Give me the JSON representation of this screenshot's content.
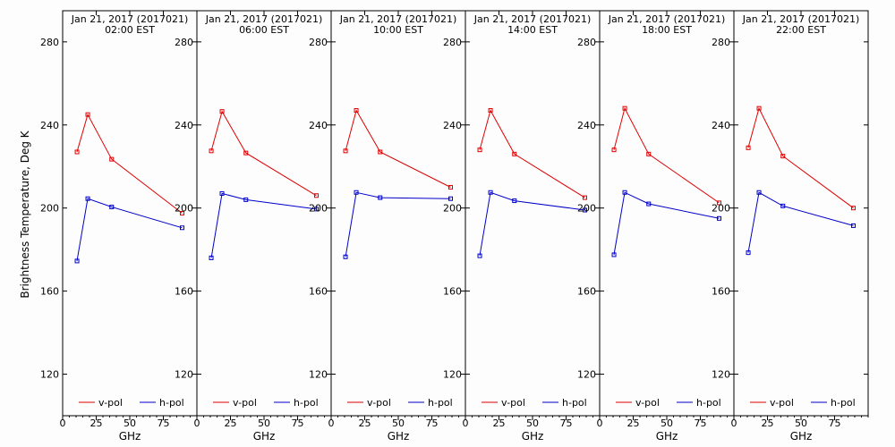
{
  "figure": {
    "ylabel": "Brightness Temperature, Deg K",
    "xlabel": "GHz",
    "colors": {
      "v": "#e00000",
      "h": "#0000c8"
    }
  },
  "chart_data": [
    {
      "type": "line",
      "title": "Jan 21, 2017 (2017021)",
      "subtitle": "02:00 EST",
      "xlabel": "GHz",
      "ylabel": "Brightness Temperature, Deg K",
      "xlim": [
        0,
        100
      ],
      "ylim": [
        100,
        295
      ],
      "xticks": [
        0,
        25,
        50,
        75
      ],
      "yticks": [
        120,
        160,
        200,
        240,
        280
      ],
      "legend_position": "bottom",
      "series": [
        {
          "name": "v-pol",
          "color": "#e00000",
          "x": [
            10.7,
            18.7,
            36.5,
            89.0
          ],
          "values": [
            227,
            245,
            223.5,
            197.5
          ]
        },
        {
          "name": "h-pol",
          "color": "#0000c8",
          "x": [
            10.7,
            18.7,
            36.5,
            89.0
          ],
          "values": [
            174.5,
            204.5,
            200.5,
            190.5
          ]
        }
      ]
    },
    {
      "type": "line",
      "title": "Jan 21, 2017 (2017021)",
      "subtitle": "06:00 EST",
      "xlabel": "GHz",
      "ylabel": "",
      "xlim": [
        0,
        100
      ],
      "ylim": [
        100,
        295
      ],
      "xticks": [
        0,
        25,
        50,
        75
      ],
      "yticks": [
        120,
        160,
        200,
        240,
        280
      ],
      "legend_position": "bottom",
      "series": [
        {
          "name": "v-pol",
          "color": "#e00000",
          "x": [
            10.7,
            18.7,
            36.5,
            89.0
          ],
          "values": [
            227.5,
            246.5,
            226.5,
            206
          ]
        },
        {
          "name": "h-pol",
          "color": "#0000c8",
          "x": [
            10.7,
            18.7,
            36.5,
            89.0
          ],
          "values": [
            176,
            207,
            204,
            199.5
          ]
        }
      ]
    },
    {
      "type": "line",
      "title": "Jan 21, 2017 (2017021)",
      "subtitle": "10:00 EST",
      "xlabel": "GHz",
      "ylabel": "",
      "xlim": [
        0,
        100
      ],
      "ylim": [
        100,
        295
      ],
      "xticks": [
        0,
        25,
        50,
        75
      ],
      "yticks": [
        120,
        160,
        200,
        240,
        280
      ],
      "legend_position": "bottom",
      "series": [
        {
          "name": "v-pol",
          "color": "#e00000",
          "x": [
            10.7,
            18.7,
            36.5,
            89.0
          ],
          "values": [
            227.5,
            247,
            227,
            210
          ]
        },
        {
          "name": "h-pol",
          "color": "#0000c8",
          "x": [
            10.7,
            18.7,
            36.5,
            89.0
          ],
          "values": [
            176.5,
            207.5,
            205,
            204.5
          ]
        }
      ]
    },
    {
      "type": "line",
      "title": "Jan 21, 2017 (2017021)",
      "subtitle": "14:00 EST",
      "xlabel": "GHz",
      "ylabel": "",
      "xlim": [
        0,
        100
      ],
      "ylim": [
        100,
        295
      ],
      "xticks": [
        0,
        25,
        50,
        75
      ],
      "yticks": [
        120,
        160,
        200,
        240,
        280
      ],
      "legend_position": "bottom",
      "series": [
        {
          "name": "v-pol",
          "color": "#e00000",
          "x": [
            10.7,
            18.7,
            36.5,
            89.0
          ],
          "values": [
            228,
            247,
            226,
            205
          ]
        },
        {
          "name": "h-pol",
          "color": "#0000c8",
          "x": [
            10.7,
            18.7,
            36.5,
            89.0
          ],
          "values": [
            177,
            207.5,
            203.5,
            199
          ]
        }
      ]
    },
    {
      "type": "line",
      "title": "Jan 21, 2017 (2017021)",
      "subtitle": "18:00 EST",
      "xlabel": "GHz",
      "ylabel": "",
      "xlim": [
        0,
        100
      ],
      "ylim": [
        100,
        295
      ],
      "xticks": [
        0,
        25,
        50,
        75
      ],
      "yticks": [
        120,
        160,
        200,
        240,
        280
      ],
      "legend_position": "bottom",
      "series": [
        {
          "name": "v-pol",
          "color": "#e00000",
          "x": [
            10.7,
            18.7,
            36.5,
            89.0
          ],
          "values": [
            228,
            248,
            226,
            202.5
          ]
        },
        {
          "name": "h-pol",
          "color": "#0000c8",
          "x": [
            10.7,
            18.7,
            36.5,
            89.0
          ],
          "values": [
            177.5,
            207.5,
            202,
            195
          ]
        }
      ]
    },
    {
      "type": "line",
      "title": "Jan 21, 2017 (2017021)",
      "subtitle": "22:00 EST",
      "xlabel": "GHz",
      "ylabel": "",
      "xlim": [
        0,
        100
      ],
      "ylim": [
        100,
        295
      ],
      "xticks": [
        0,
        25,
        50,
        75
      ],
      "yticks": [
        120,
        160,
        200,
        240,
        280
      ],
      "legend_position": "bottom",
      "series": [
        {
          "name": "v-pol",
          "color": "#e00000",
          "x": [
            10.7,
            18.7,
            36.5,
            89.0
          ],
          "values": [
            229,
            248,
            225,
            200
          ]
        },
        {
          "name": "h-pol",
          "color": "#0000c8",
          "x": [
            10.7,
            18.7,
            36.5,
            89.0
          ],
          "values": [
            178.5,
            207.5,
            201,
            191.5
          ]
        }
      ]
    }
  ]
}
